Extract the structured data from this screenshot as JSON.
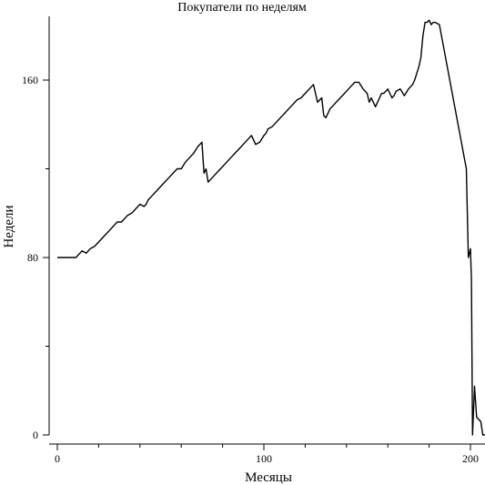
{
  "chart_data": {
    "type": "line",
    "title": "Покупатели по неделям",
    "xlabel": "Месяцы",
    "ylabel": "Недели",
    "xlim": [
      0,
      207
    ],
    "ylim": [
      0,
      188
    ],
    "x_ticks": [
      0,
      100,
      200
    ],
    "x_minor_ticks": [
      20,
      40,
      60,
      80,
      120,
      140,
      160,
      180
    ],
    "y_ticks": [
      0,
      80,
      160
    ],
    "y_minor_ticks": [
      40,
      120
    ],
    "grid": false,
    "legend": "none",
    "line_color": "#000000",
    "series": [
      {
        "x": [
          0,
          1,
          9,
          12,
          14,
          16,
          18,
          19,
          21,
          23,
          25,
          27,
          29,
          31,
          34,
          36,
          38,
          40,
          42,
          43,
          44,
          46,
          48,
          50,
          52,
          54,
          56,
          58,
          60,
          62,
          64,
          66,
          68,
          70,
          71,
          72,
          73,
          74,
          76,
          78,
          80,
          82,
          84,
          86,
          88,
          90,
          92,
          94,
          96,
          98,
          100,
          101,
          102,
          104,
          106,
          108,
          110,
          112,
          114,
          116,
          118,
          120,
          122,
          124,
          126,
          127,
          128,
          129,
          130,
          131,
          132,
          134,
          136,
          138,
          140,
          142,
          144,
          146,
          148,
          150,
          151,
          152,
          153,
          154,
          155,
          156,
          157,
          158,
          160,
          162,
          163,
          164,
          166,
          168,
          170,
          172,
          173,
          174,
          175,
          176,
          177,
          178,
          179,
          180,
          181,
          182,
          183,
          185,
          198,
          199,
          200,
          200.5,
          201,
          202,
          203,
          205,
          206,
          207
        ],
        "values": [
          80,
          80,
          80,
          83,
          82,
          84,
          85,
          86,
          88,
          90,
          92,
          94,
          96,
          96,
          99,
          100,
          102,
          104,
          103,
          104,
          106,
          108,
          110,
          112,
          114,
          116,
          118,
          120,
          120,
          123,
          125,
          127,
          130,
          132,
          118,
          120,
          114,
          115,
          117,
          119,
          121,
          123,
          125,
          127,
          129,
          131,
          133,
          135,
          131,
          132,
          135,
          136,
          138,
          139,
          141,
          143,
          145,
          147,
          149,
          151,
          152,
          154,
          156,
          158,
          150,
          151,
          152,
          144,
          143,
          145,
          147,
          149,
          151,
          153,
          155,
          157,
          159,
          159,
          156,
          154,
          150,
          152,
          150,
          148,
          150,
          152,
          154,
          154,
          156,
          152,
          153,
          155,
          156,
          153,
          156,
          158,
          160,
          163,
          166,
          170,
          180,
          186,
          186,
          187,
          185,
          186,
          186,
          185,
          120,
          80,
          84,
          70,
          0,
          22,
          8,
          6,
          0,
          0
        ]
      }
    ]
  }
}
